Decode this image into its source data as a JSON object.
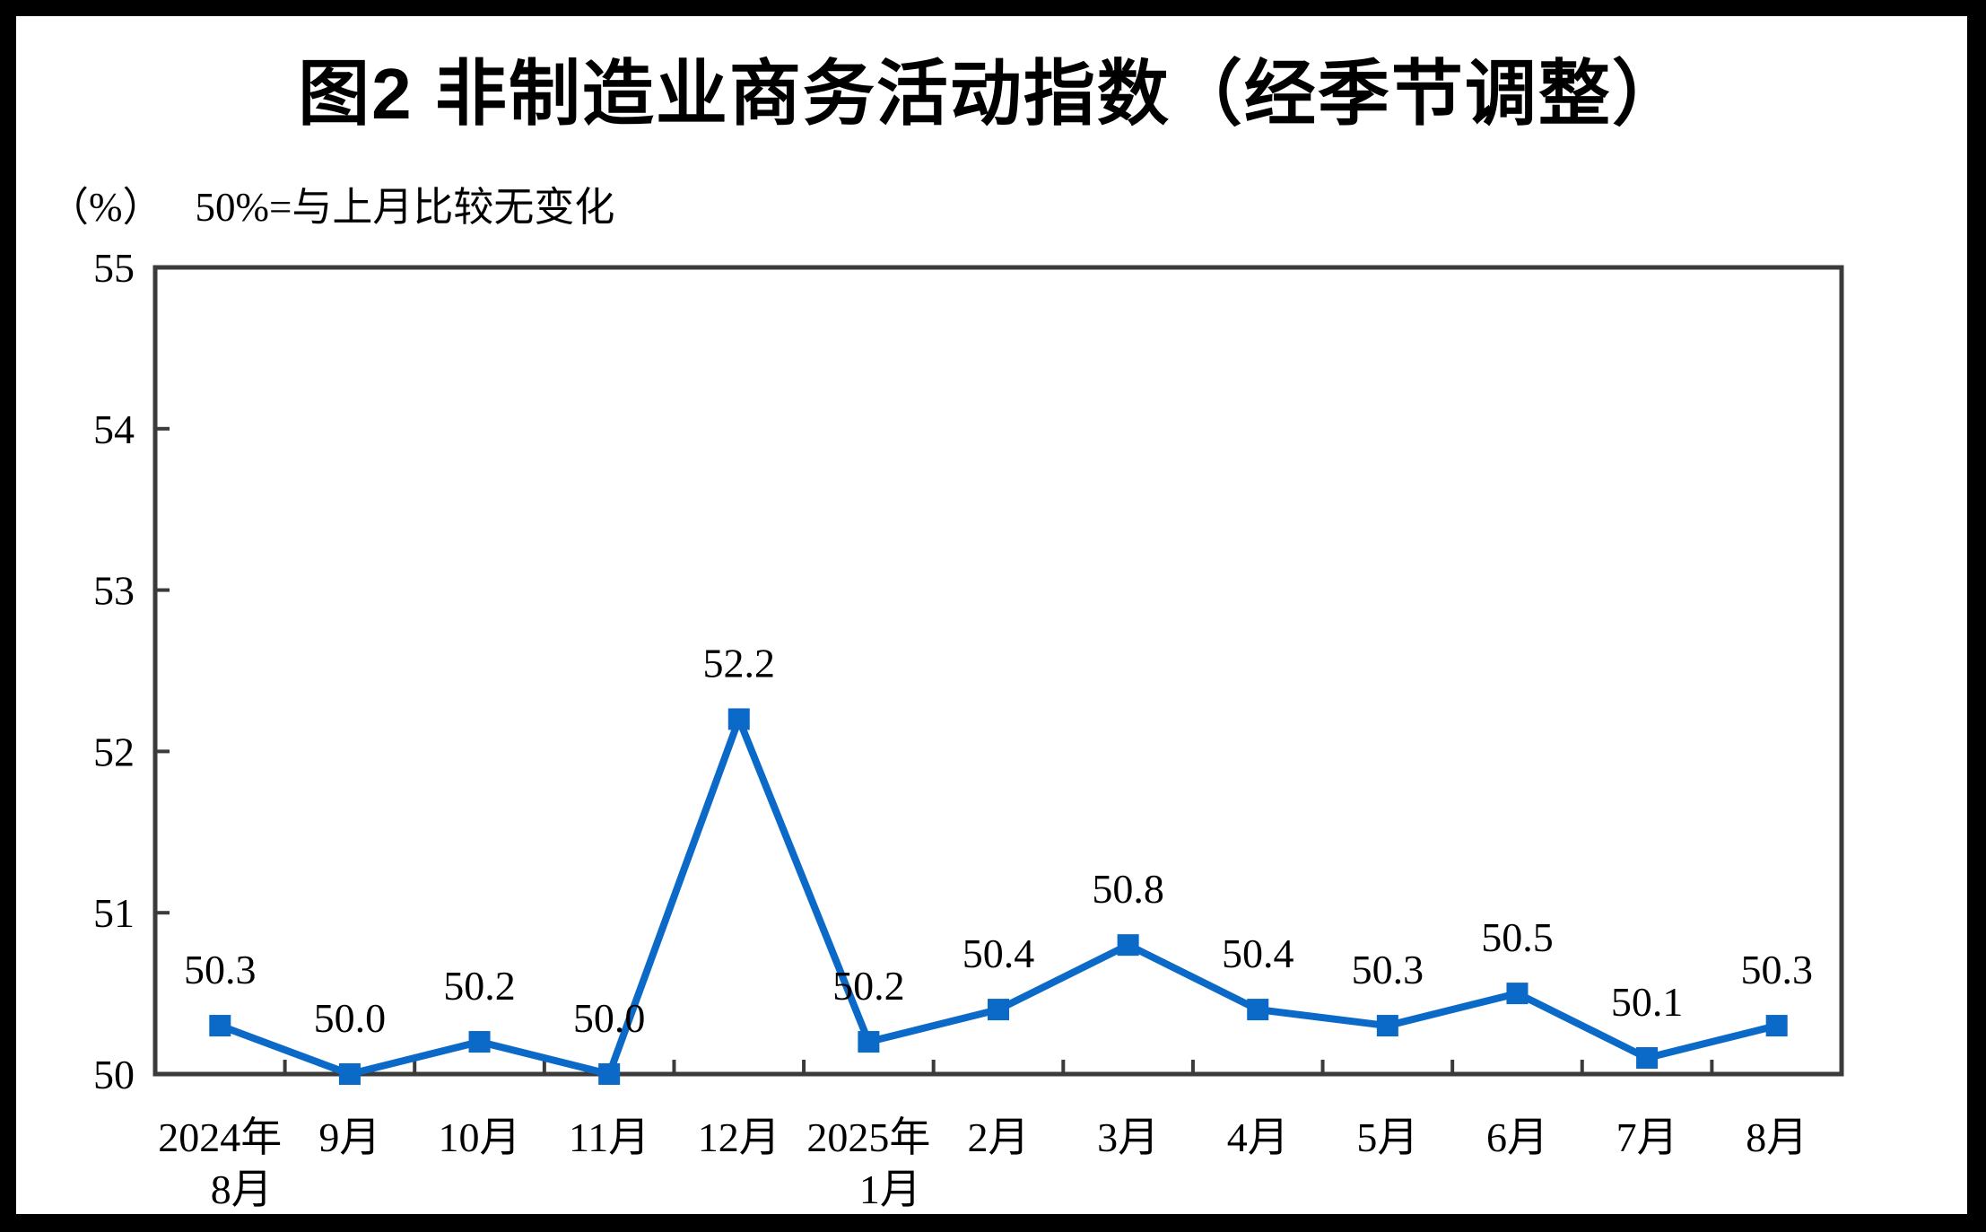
{
  "page": {
    "border_color": "#000000",
    "canvas_background": "#ffffff"
  },
  "chart_data": {
    "type": "line",
    "title": "图2 非制造业商务活动指数（经季节调整）",
    "ylabel": "（%）",
    "xlabel": "",
    "note": "50%=与上月比较无变化",
    "categories": [
      "2024年\n8月",
      "9月",
      "10月",
      "11月",
      "12月",
      "2025年\n1月",
      "2月",
      "3月",
      "4月",
      "5月",
      "6月",
      "7月",
      "8月"
    ],
    "values": [
      50.3,
      50.0,
      50.2,
      50.0,
      52.2,
      50.2,
      50.4,
      50.8,
      50.4,
      50.3,
      50.5,
      50.1,
      50.3
    ],
    "data_labels": [
      "50.3",
      "50.0",
      "50.2",
      "50.0",
      "52.2",
      "50.2",
      "50.4",
      "50.8",
      "50.4",
      "50.3",
      "50.5",
      "50.1",
      "50.3"
    ],
    "ylim": [
      50,
      55
    ],
    "yticks": [
      50,
      51,
      52,
      53,
      54,
      55
    ],
    "grid": false,
    "legend_position": "none",
    "line_color": "#0B69C7",
    "marker": "square",
    "marker_color": "#0B69C7",
    "axis_color": "#3B3B3B",
    "label_color": "#000000"
  }
}
